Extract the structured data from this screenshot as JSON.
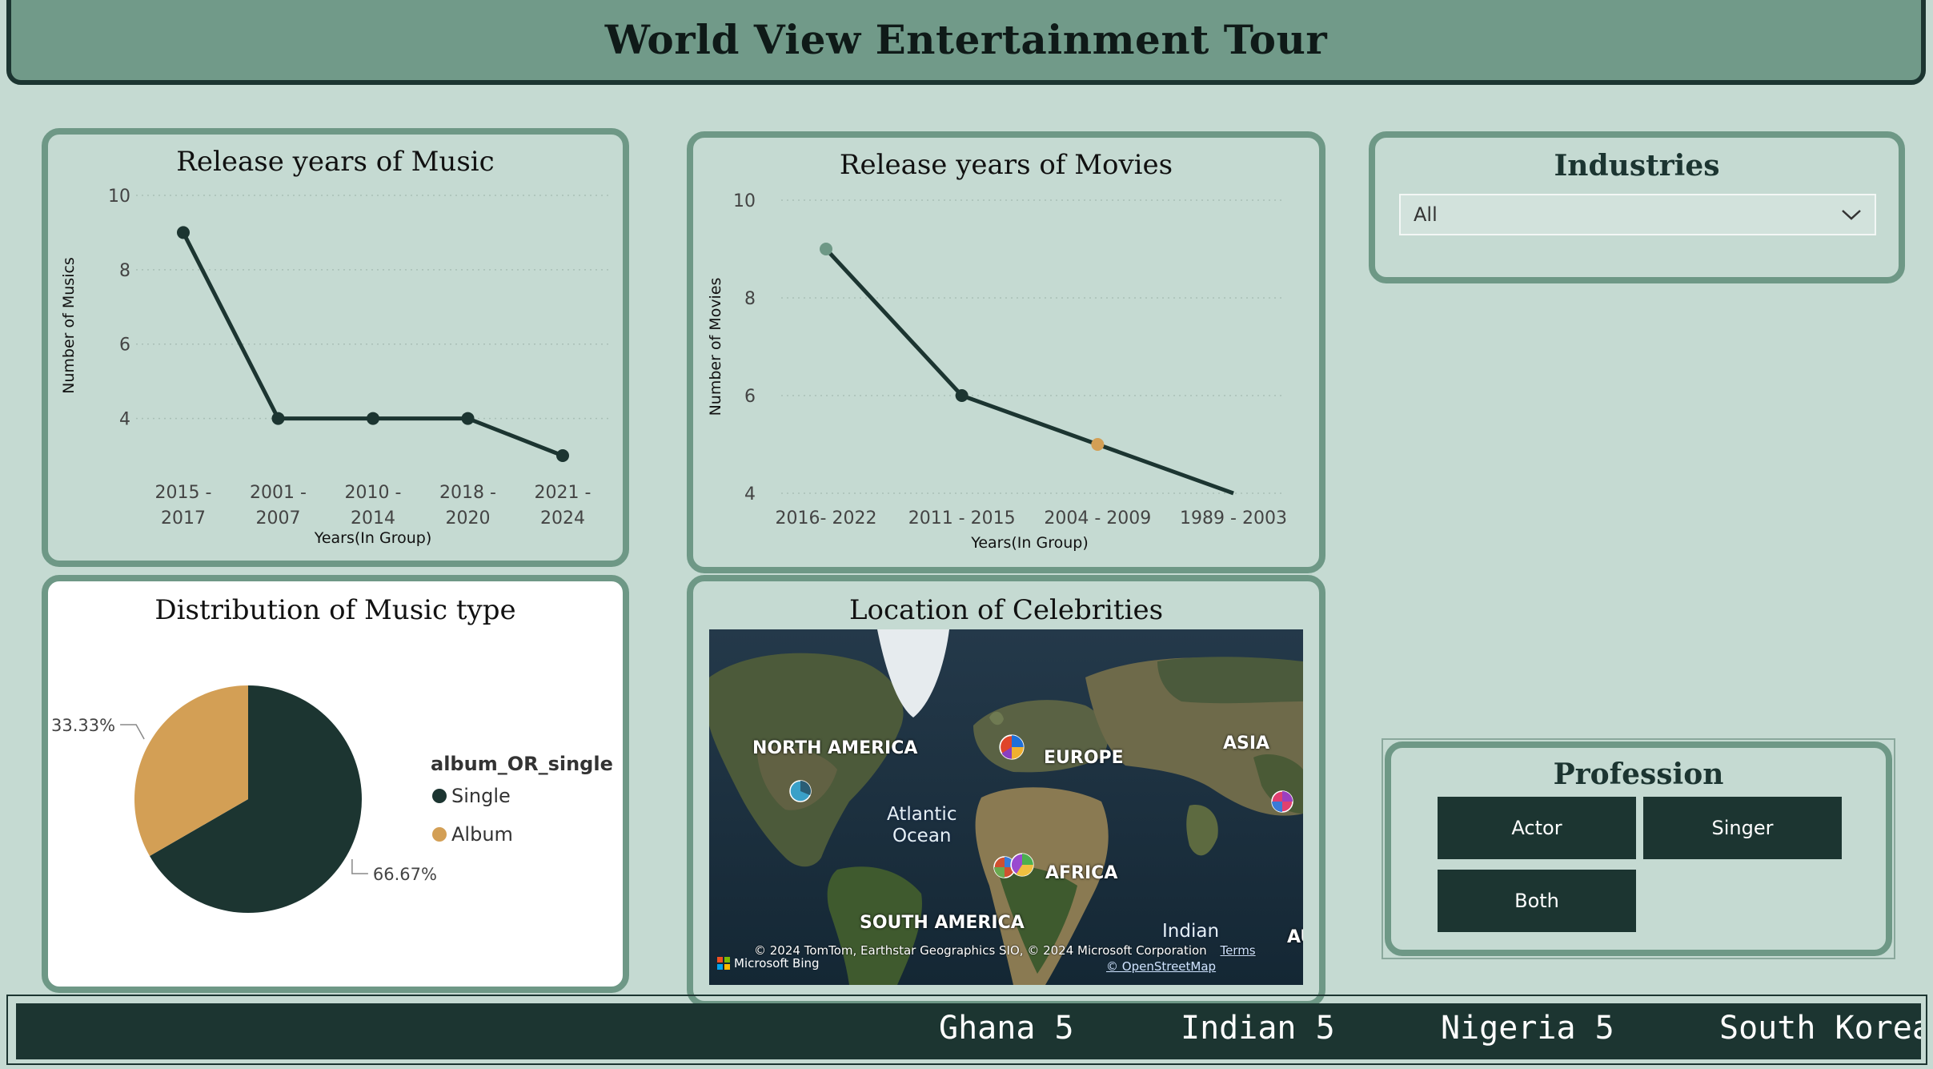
{
  "header": {
    "title": "World View Entertainment Tour"
  },
  "music_chart": {
    "title": "Release years of Music",
    "chart_data": {
      "type": "line",
      "title": "Release years of Music",
      "xlabel": "Years(In Group)",
      "ylabel": "Number of Musics",
      "categories": [
        "2015 - 2017",
        "2001 - 2007",
        "2010 - 2014",
        "2018 - 2020",
        "2021 - 2024"
      ],
      "values": [
        9,
        4,
        4,
        4,
        3
      ],
      "ylim": [
        3,
        10
      ],
      "yticks": [
        "4",
        "6",
        "8",
        "10"
      ],
      "line_color": "#1c3531",
      "grid": true
    }
  },
  "movies_chart": {
    "title": "Release years of Movies",
    "chart_data": {
      "type": "line",
      "title": "Release years of Movies",
      "xlabel": "Years(In Group)",
      "ylabel": "Number of Movies",
      "categories": [
        "2016- 2022",
        "2011 - 2015",
        "2004 - 2009",
        "1989 - 2003"
      ],
      "values": [
        9,
        6,
        5,
        4
      ],
      "ylim": [
        4,
        10
      ],
      "yticks": [
        "4",
        "6",
        "8",
        "10"
      ],
      "line_color": "#1c3531",
      "highlight_colors": [
        "#6e9886",
        "#1c3531",
        "#d39f55",
        "#1c3531"
      ],
      "grid": true
    }
  },
  "industries": {
    "title": "Industries",
    "selected": "All"
  },
  "music_pie": {
    "title": "Distribution of Music type",
    "chart_data": {
      "type": "pie",
      "title": "Distribution of Music type",
      "legend_title": "album_OR_single",
      "slices": [
        {
          "label": "Single",
          "value": 66.67,
          "display": "66.67%",
          "color": "#1c3531"
        },
        {
          "label": "Album",
          "value": 33.33,
          "display": "33.33%",
          "color": "#d39f55"
        }
      ],
      "legend_placement": "right"
    }
  },
  "map": {
    "title": "Location of Celebrities",
    "labels": {
      "north_america": "NORTH AMERICA",
      "europe": "EUROPE",
      "asia": "ASIA",
      "africa": "AFRICA",
      "south_america": "SOUTH AMERICA",
      "atlantic": "Atlantic\nOcean",
      "indian": "Indian",
      "au": "AU"
    },
    "copyright": "© 2024 TomTom, Earthstar Geographics SIO, © 2024 Microsoft Corporation",
    "terms": "Terms",
    "osm": "© OpenStreetMap",
    "bing": "Microsoft Bing"
  },
  "profession": {
    "title": "Profession",
    "buttons": [
      "Actor",
      "Singer",
      "Both"
    ]
  },
  "ticker": {
    "items": [
      "Ghana 5",
      "Indian 5",
      "Nigeria 5",
      "South Korea"
    ]
  },
  "colors": {
    "dark": "#1c3531",
    "accent": "#d39f55",
    "panel_border": "#6e9886",
    "background": "#c5dad2"
  }
}
